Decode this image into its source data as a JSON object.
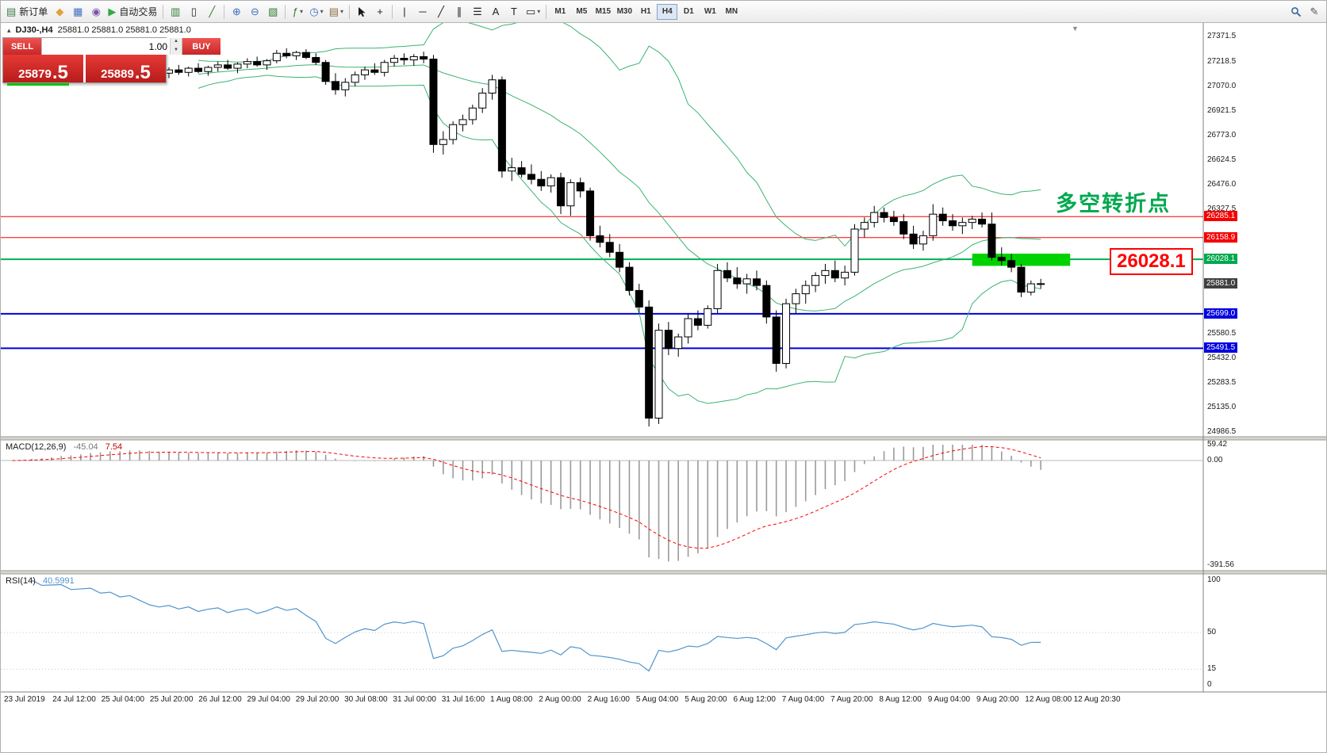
{
  "ui": {
    "glyphs": {
      "spin_up": "▲",
      "spin_down": "▼",
      "symbol_marker": "▴",
      "chart_shift": "▼"
    }
  },
  "toolbar": {
    "items": [
      {
        "name": "new-order-button",
        "glyph": "▤",
        "color": "#3a7d44",
        "label": "新订单"
      },
      {
        "name": "mql5-community-icon",
        "glyph": "◆",
        "color": "#e2a13b"
      },
      {
        "name": "charts-window-icon",
        "glyph": "▦",
        "color": "#3f6fbf"
      },
      {
        "name": "alerts-icon",
        "glyph": "◉",
        "color": "#7a52a8"
      },
      {
        "name": "autotrading-button",
        "glyph": "▶",
        "color": "#2faa44",
        "label": "自动交易"
      },
      {
        "sep": true
      },
      {
        "name": "bar-chart-type-button",
        "glyph": "▥",
        "color": "#2e7d32"
      },
      {
        "name": "candlestick-type-button",
        "glyph": "▯",
        "color": "#222222"
      },
      {
        "name": "line-chart-type-button",
        "glyph": "╱",
        "color": "#2e7d32"
      },
      {
        "sep": true
      },
      {
        "name": "zoom-in-button",
        "glyph": "⊕",
        "color": "#3f6fbf"
      },
      {
        "name": "zoom-out-button",
        "glyph": "⊖",
        "color": "#3f6fbf"
      },
      {
        "name": "tile-windows-button",
        "glyph": "▧",
        "color": "#2e7d32"
      },
      {
        "sep": true
      },
      {
        "name": "indicators-button",
        "glyph": "ƒ",
        "color": "#2e7d32",
        "caret": true
      },
      {
        "name": "periods-button",
        "glyph": "◷",
        "color": "#3f6fbf",
        "caret": true
      },
      {
        "name": "templates-button",
        "glyph": "▤",
        "color": "#8a6d3b",
        "caret": true
      },
      {
        "sep": true
      },
      {
        "name": "cursor-button",
        "glyph": "svg-cursor",
        "color": "#222222"
      },
      {
        "name": "crosshair-button",
        "glyph": "+",
        "color": "#222222"
      },
      {
        "sep": true
      },
      {
        "name": "vertical-line-button",
        "glyph": "|",
        "color": "#222222"
      },
      {
        "name": "horizontal-line-button",
        "glyph": "─",
        "color": "#222222"
      },
      {
        "name": "trendline-button",
        "glyph": "╱",
        "color": "#222222"
      },
      {
        "name": "equidistant-channel-button",
        "glyph": "∥",
        "color": "#222222"
      },
      {
        "name": "fibonacci-button",
        "glyph": "☰",
        "color": "#222222"
      },
      {
        "name": "text-button",
        "glyph": "A",
        "color": "#222222"
      },
      {
        "name": "text-label-button",
        "glyph": "T",
        "color": "#222222"
      },
      {
        "name": "shapes-button",
        "glyph": "▭",
        "color": "#222222",
        "caret": true
      },
      {
        "sep": true
      }
    ],
    "timeframes": [
      "M1",
      "M5",
      "M15",
      "M30",
      "H1",
      "H4",
      "D1",
      "W1",
      "MN"
    ],
    "active_timeframe": "H4",
    "right_items": [
      {
        "name": "search-icon-button",
        "glyph": "svg-magnifier",
        "color": "#335f9e"
      },
      {
        "name": "edit-profile-button",
        "glyph": "✎",
        "color": "#555555"
      }
    ]
  },
  "chart": {
    "symbol_text": "DJ30-,H4",
    "ohlc_text": "25881.0 25881.0 25881.0 25881.0",
    "one_click": {
      "sell_label": "SELL",
      "buy_label": "BUY",
      "volume": "1.00",
      "sell_price_main": "25879",
      "sell_price_frac": ".5",
      "buy_price_main": "25889",
      "buy_price_frac": ".5"
    },
    "annotations": {
      "turning_point_text": "多空转折点",
      "turning_point_color": "#00a84f",
      "price_callout_text": "26028.1",
      "price_callout_color": "#ff0000"
    }
  },
  "chart_data": {
    "type": "candlestick",
    "symbol": "DJ30-",
    "timeframe": "H4",
    "title": "DJ30-,H4",
    "y_axis": {
      "min": 24986.5,
      "max": 27371.5,
      "gray_labels": [
        "27371.5",
        "27218.5",
        "27070.0",
        "26921.5",
        "26773.0",
        "26624.5",
        "26476.0",
        "26327.5",
        "25580.5",
        "25432.0",
        "25283.5",
        "25135.0",
        "24986.5"
      ]
    },
    "x_labels": [
      "23 Jul 2019",
      "24 Jul 12:00",
      "25 Jul 04:00",
      "25 Jul 20:00",
      "26 Jul 12:00",
      "29 Jul 04:00",
      "29 Jul 20:00",
      "30 Jul 08:00",
      "31 Jul 00:00",
      "31 Jul 16:00",
      "1 Aug 08:00",
      "2 Aug 00:00",
      "2 Aug 16:00",
      "5 Aug 04:00",
      "5 Aug 20:00",
      "6 Aug 12:00",
      "7 Aug 04:00",
      "7 Aug 20:00",
      "8 Aug 12:00",
      "9 Aug 04:00",
      "9 Aug 20:00",
      "12 Aug 08:00",
      "12 Aug 20:30"
    ],
    "style": {
      "bull": "#ffffff",
      "bear": "#000000",
      "wick": "#000000",
      "bollinger": "#3cb371",
      "macd_hist": "#9a9a9a",
      "macd_signal": "#ff0000",
      "rsi_line": "#4f94cd"
    },
    "offscreen_history": 16,
    "candles": [
      [
        27000,
        27060,
        26980,
        27040
      ],
      [
        27040,
        27090,
        27010,
        27070
      ],
      [
        27070,
        27120,
        27040,
        27100
      ],
      [
        27100,
        27140,
        27060,
        27080
      ],
      [
        27080,
        27130,
        27050,
        27110
      ],
      [
        27110,
        27160,
        27080,
        27140
      ],
      [
        27140,
        27180,
        27100,
        27120
      ],
      [
        27120,
        27170,
        27090,
        27150
      ],
      [
        27150,
        27200,
        27120,
        27180
      ],
      [
        27180,
        27220,
        27140,
        27160
      ],
      [
        27160,
        27210,
        27130,
        27190
      ],
      [
        27190,
        27230,
        27150,
        27170
      ],
      [
        27170,
        27220,
        27140,
        27200
      ],
      [
        27200,
        27240,
        27160,
        27180
      ],
      [
        27180,
        27230,
        27150,
        27160
      ],
      [
        27160,
        27200,
        27120,
        27150
      ],
      [
        27150,
        27185,
        27120,
        27170
      ],
      [
        27170,
        27200,
        27140,
        27155
      ],
      [
        27155,
        27190,
        27130,
        27180
      ],
      [
        27180,
        27210,
        27150,
        27160
      ],
      [
        27160,
        27195,
        27135,
        27185
      ],
      [
        27185,
        27220,
        27160,
        27200
      ],
      [
        27200,
        27230,
        27170,
        27180
      ],
      [
        27180,
        27215,
        27150,
        27205
      ],
      [
        27205,
        27240,
        27180,
        27220
      ],
      [
        27220,
        27250,
        27190,
        27200
      ],
      [
        27200,
        27235,
        27170,
        27225
      ],
      [
        27225,
        27290,
        27210,
        27270
      ],
      [
        27270,
        27300,
        27240,
        27255
      ],
      [
        27255,
        27285,
        27230,
        27275
      ],
      [
        27275,
        27295,
        27235,
        27245
      ],
      [
        27245,
        27270,
        27200,
        27215
      ],
      [
        27215,
        27230,
        27080,
        27100
      ],
      [
        27100,
        27150,
        27020,
        27050
      ],
      [
        27050,
        27120,
        27010,
        27095
      ],
      [
        27095,
        27160,
        27070,
        27140
      ],
      [
        27140,
        27190,
        27110,
        27170
      ],
      [
        27170,
        27210,
        27140,
        27155
      ],
      [
        27155,
        27230,
        27130,
        27215
      ],
      [
        27215,
        27260,
        27190,
        27240
      ],
      [
        27240,
        27270,
        27200,
        27230
      ],
      [
        27230,
        27265,
        27195,
        27250
      ],
      [
        27250,
        27280,
        27210,
        27235
      ],
      [
        27235,
        27260,
        26670,
        26720
      ],
      [
        26720,
        26800,
        26660,
        26750
      ],
      [
        26750,
        26860,
        26720,
        26840
      ],
      [
        26840,
        26900,
        26800,
        26870
      ],
      [
        26870,
        26960,
        26840,
        26940
      ],
      [
        26940,
        27060,
        26910,
        27030
      ],
      [
        27030,
        27140,
        26990,
        27110
      ],
      [
        27110,
        27130,
        26520,
        26560
      ],
      [
        26560,
        26640,
        26500,
        26580
      ],
      [
        26580,
        26620,
        26520,
        26540
      ],
      [
        26540,
        26600,
        26480,
        26510
      ],
      [
        26510,
        26560,
        26440,
        26470
      ],
      [
        26470,
        26540,
        26430,
        26520
      ],
      [
        26520,
        26550,
        26300,
        26350
      ],
      [
        26350,
        26510,
        26290,
        26490
      ],
      [
        26490,
        26520,
        26400,
        26440
      ],
      [
        26440,
        26460,
        26140,
        26170
      ],
      [
        26170,
        26230,
        26100,
        26130
      ],
      [
        26130,
        26180,
        26040,
        26070
      ],
      [
        26070,
        26120,
        25950,
        25980
      ],
      [
        25980,
        26010,
        25810,
        25840
      ],
      [
        25840,
        25880,
        25700,
        25740
      ],
      [
        25740,
        25780,
        25020,
        25070
      ],
      [
        25070,
        25640,
        25035,
        25600
      ],
      [
        25600,
        25650,
        25450,
        25490
      ],
      [
        25490,
        25580,
        25440,
        25560
      ],
      [
        25560,
        25700,
        25520,
        25670
      ],
      [
        25670,
        25720,
        25600,
        25630
      ],
      [
        25630,
        25750,
        25610,
        25730
      ],
      [
        25730,
        26000,
        25700,
        25960
      ],
      [
        25960,
        26010,
        25890,
        25915
      ],
      [
        25915,
        25980,
        25850,
        25880
      ],
      [
        25880,
        25940,
        25820,
        25910
      ],
      [
        25910,
        25960,
        25840,
        25870
      ],
      [
        25870,
        25900,
        25640,
        25680
      ],
      [
        25680,
        25720,
        25350,
        25400
      ],
      [
        25400,
        25790,
        25370,
        25760
      ],
      [
        25760,
        25850,
        25700,
        25820
      ],
      [
        25820,
        25900,
        25760,
        25870
      ],
      [
        25870,
        25950,
        25830,
        25930
      ],
      [
        25930,
        26000,
        25880,
        25960
      ],
      [
        25960,
        26020,
        25890,
        25915
      ],
      [
        25915,
        25990,
        25870,
        25950
      ],
      [
        25950,
        26240,
        25930,
        26210
      ],
      [
        26210,
        26280,
        26160,
        26250
      ],
      [
        26250,
        26350,
        26220,
        26310
      ],
      [
        26310,
        26340,
        26250,
        26280
      ],
      [
        26280,
        26320,
        26230,
        26255
      ],
      [
        26255,
        26300,
        26150,
        26180
      ],
      [
        26180,
        26230,
        26090,
        26120
      ],
      [
        26120,
        26200,
        26080,
        26170
      ],
      [
        26170,
        26360,
        26140,
        26300
      ],
      [
        26300,
        26340,
        26230,
        26260
      ],
      [
        26260,
        26300,
        26200,
        26230
      ],
      [
        26230,
        26280,
        26180,
        26250
      ],
      [
        26250,
        26290,
        26210,
        26270
      ],
      [
        26270,
        26310,
        26220,
        26240
      ],
      [
        26240,
        26310,
        26020,
        26040
      ],
      [
        26040,
        26100,
        25990,
        26020
      ],
      [
        26020,
        26060,
        25950,
        25980
      ],
      [
        25980,
        26000,
        25800,
        25830
      ],
      [
        25830,
        25900,
        25810,
        25880
      ],
      [
        25880,
        25910,
        25850,
        25881
      ]
    ],
    "overlays": {
      "bollinger": {
        "period": 20,
        "deviation": 2,
        "color": "#3cb371"
      }
    },
    "horizontal_lines": [
      {
        "price": 26285.1,
        "label": "26285.1",
        "color": "#ff0000",
        "label_bg": "#f50000",
        "width": 1
      },
      {
        "price": 26158.9,
        "label": "26158.9",
        "color": "#ff0000",
        "label_bg": "#f50000",
        "width": 1
      },
      {
        "price": 26028.1,
        "label": "26028.1",
        "color": "#00b050",
        "label_bg": "#00a84f",
        "width": 2
      },
      {
        "price": 25881.0,
        "label": "25881.0",
        "color": "#404040",
        "label_bg": "#404040",
        "width": 0,
        "current": true
      },
      {
        "price": 25699.0,
        "label": "25699.0",
        "color": "#0000e0",
        "label_bg": "#0000e0",
        "width": 2
      },
      {
        "price": 25491.5,
        "label": "25491.5",
        "color": "#0000e0",
        "label_bg": "#0000e0",
        "width": 2
      }
    ],
    "green_box": {
      "from_price": 26062,
      "to_price": 25988,
      "from_candle": 82,
      "to_candle": 92,
      "color": "#00d200"
    },
    "indicators": {
      "macd": {
        "name": "MACD(12,26,9)",
        "value": "-45.04",
        "signal_value": "7.54",
        "fast": 12,
        "slow": 26,
        "signal_period": 9,
        "scale_top": "59.42",
        "scale_zero": "0.00",
        "scale_bottom": "-391.56"
      },
      "rsi": {
        "name": "RSI(14)",
        "value": "40.5991",
        "period": 14,
        "levels": [
          "100",
          "50",
          "15",
          "0"
        ]
      }
    }
  }
}
